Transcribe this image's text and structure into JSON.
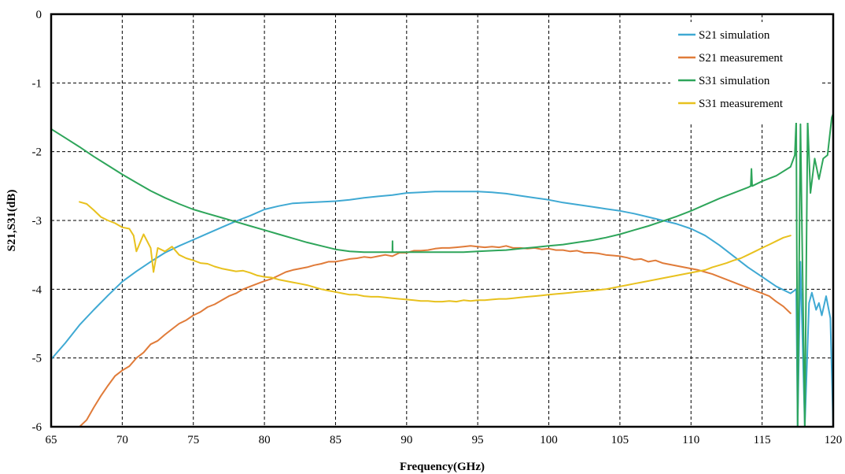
{
  "chart_data": {
    "type": "line",
    "title": "",
    "xlabel": "Frequency(GHz)",
    "ylabel": "S21,S31(dB)",
    "xlim": [
      65,
      120
    ],
    "ylim": [
      -6,
      0
    ],
    "xticks": [
      65,
      70,
      75,
      80,
      85,
      90,
      95,
      100,
      105,
      110,
      115,
      120
    ],
    "yticks": [
      0,
      -1,
      -2,
      -3,
      -4,
      -5,
      -6
    ],
    "grid": true,
    "legend_position": "top-right",
    "series": [
      {
        "name": "S21 simulation",
        "color": "#3fa9d3",
        "x": [
          65,
          66,
          67,
          68,
          69,
          70,
          71,
          72,
          73,
          74,
          75,
          76,
          77,
          78,
          79,
          80,
          81,
          82,
          83,
          84,
          85,
          86,
          87,
          88,
          89,
          90,
          91,
          92,
          93,
          94,
          95,
          96,
          97,
          98,
          99,
          100,
          101,
          102,
          103,
          104,
          105,
          106,
          107,
          108,
          109,
          110,
          111,
          112,
          113,
          114,
          115,
          116,
          117,
          117.4,
          117.5,
          117.7,
          118,
          118.3,
          118.5,
          118.8,
          119,
          119.2,
          119.5,
          119.8,
          120
        ],
        "values": [
          -5.02,
          -4.78,
          -4.52,
          -4.3,
          -4.09,
          -3.89,
          -3.74,
          -3.6,
          -3.47,
          -3.37,
          -3.28,
          -3.19,
          -3.1,
          -3.01,
          -2.93,
          -2.84,
          -2.79,
          -2.75,
          -2.74,
          -2.73,
          -2.72,
          -2.7,
          -2.67,
          -2.65,
          -2.63,
          -2.6,
          -2.59,
          -2.58,
          -2.58,
          -2.58,
          -2.58,
          -2.59,
          -2.61,
          -2.64,
          -2.67,
          -2.7,
          -2.74,
          -2.77,
          -2.8,
          -2.83,
          -2.86,
          -2.9,
          -2.95,
          -3.0,
          -3.05,
          -3.12,
          -3.22,
          -3.36,
          -3.52,
          -3.68,
          -3.82,
          -3.96,
          -4.06,
          -4.0,
          -6.0,
          -3.6,
          -6.0,
          -4.2,
          -4.05,
          -4.3,
          -4.2,
          -4.38,
          -4.1,
          -4.42,
          -6.0
        ]
      },
      {
        "name": "S21 measurement",
        "color": "#e07b39",
        "x": [
          67,
          67.5,
          68,
          68.5,
          69,
          69.5,
          70,
          70.5,
          71,
          71.5,
          72,
          72.5,
          73,
          73.5,
          74,
          74.5,
          75,
          75.5,
          76,
          76.5,
          77,
          77.5,
          78,
          78.5,
          79,
          79.5,
          80,
          80.5,
          81,
          81.5,
          82,
          82.5,
          83,
          83.5,
          84,
          84.5,
          85,
          85.5,
          86,
          86.5,
          87,
          87.5,
          88,
          88.5,
          89,
          89.5,
          90,
          90.5,
          91,
          91.5,
          92,
          92.5,
          93,
          93.5,
          94,
          94.5,
          95,
          95.5,
          96,
          96.5,
          97,
          97.5,
          98,
          98.5,
          99,
          99.5,
          100,
          100.5,
          101,
          101.5,
          102,
          102.5,
          103,
          103.5,
          104,
          104.5,
          105,
          105.5,
          106,
          106.5,
          107,
          107.5,
          108,
          108.5,
          109,
          109.5,
          110,
          110.5,
          111,
          111.5,
          112,
          112.5,
          113,
          113.5,
          114,
          114.5,
          115,
          115.5,
          116,
          116.5,
          117
        ],
        "values": [
          -6.0,
          -5.9,
          -5.72,
          -5.55,
          -5.4,
          -5.26,
          -5.18,
          -5.12,
          -5.0,
          -4.92,
          -4.8,
          -4.75,
          -4.66,
          -4.58,
          -4.5,
          -4.45,
          -4.38,
          -4.33,
          -4.26,
          -4.22,
          -4.16,
          -4.1,
          -4.06,
          -4.0,
          -3.96,
          -3.92,
          -3.88,
          -3.85,
          -3.8,
          -3.75,
          -3.72,
          -3.7,
          -3.68,
          -3.65,
          -3.63,
          -3.6,
          -3.6,
          -3.58,
          -3.56,
          -3.55,
          -3.53,
          -3.54,
          -3.52,
          -3.5,
          -3.52,
          -3.47,
          -3.47,
          -3.44,
          -3.44,
          -3.43,
          -3.41,
          -3.4,
          -3.4,
          -3.39,
          -3.38,
          -3.37,
          -3.38,
          -3.39,
          -3.38,
          -3.39,
          -3.37,
          -3.4,
          -3.4,
          -3.41,
          -3.4,
          -3.42,
          -3.41,
          -3.43,
          -3.43,
          -3.45,
          -3.44,
          -3.47,
          -3.47,
          -3.48,
          -3.5,
          -3.51,
          -3.52,
          -3.54,
          -3.57,
          -3.56,
          -3.6,
          -3.58,
          -3.62,
          -3.64,
          -3.66,
          -3.68,
          -3.7,
          -3.72,
          -3.75,
          -3.78,
          -3.82,
          -3.86,
          -3.9,
          -3.94,
          -3.98,
          -4.02,
          -4.06,
          -4.1,
          -4.18,
          -4.25,
          -4.35
        ]
      },
      {
        "name": "S31 simulation",
        "color": "#2ea55a",
        "x": [
          65,
          66,
          67,
          68,
          69,
          70,
          71,
          72,
          73,
          74,
          75,
          76,
          77,
          78,
          79,
          80,
          81,
          82,
          83,
          84,
          85,
          86,
          87,
          88,
          89,
          89.01,
          89.02,
          90,
          91,
          92,
          93,
          94,
          95,
          96,
          97,
          98,
          99,
          100,
          101,
          102,
          103,
          104,
          105,
          106,
          107,
          108,
          109,
          110,
          111,
          112,
          113,
          114,
          114.2,
          114.25,
          114.3,
          115,
          116,
          117,
          117.3,
          117.4,
          117.5,
          117.7,
          118,
          118.2,
          118.4,
          118.7,
          119,
          119.3,
          119.6,
          119.9,
          120
        ],
        "values": [
          -1.67,
          -1.8,
          -1.93,
          -2.07,
          -2.2,
          -2.33,
          -2.45,
          -2.57,
          -2.67,
          -2.76,
          -2.84,
          -2.9,
          -2.96,
          -3.02,
          -3.08,
          -3.14,
          -3.2,
          -3.26,
          -3.32,
          -3.37,
          -3.42,
          -3.45,
          -3.46,
          -3.46,
          -3.46,
          -3.3,
          -3.46,
          -3.46,
          -3.46,
          -3.46,
          -3.46,
          -3.46,
          -3.45,
          -3.44,
          -3.43,
          -3.41,
          -3.39,
          -3.37,
          -3.35,
          -3.32,
          -3.29,
          -3.25,
          -3.2,
          -3.14,
          -3.08,
          -3.01,
          -2.94,
          -2.86,
          -2.77,
          -2.68,
          -2.6,
          -2.52,
          -2.5,
          -2.25,
          -2.5,
          -2.43,
          -2.35,
          -2.22,
          -2.05,
          -1.55,
          -6.0,
          -1.6,
          -6.0,
          -1.55,
          -2.6,
          -2.1,
          -2.4,
          -2.1,
          -2.05,
          -1.5,
          -1.45
        ]
      },
      {
        "name": "S31 measurement",
        "color": "#e8c11e",
        "x": [
          67,
          67.5,
          68,
          68.5,
          69,
          69.5,
          70,
          70.5,
          70.8,
          71,
          71.5,
          72,
          72.2,
          72.5,
          73,
          73.5,
          74,
          74.5,
          75,
          75.5,
          76,
          76.5,
          77,
          77.5,
          78,
          78.5,
          79,
          79.5,
          80,
          80.5,
          81,
          81.5,
          82,
          82.5,
          83,
          83.5,
          84,
          84.5,
          85,
          85.5,
          86,
          86.5,
          87,
          87.5,
          88,
          88.5,
          89,
          89.5,
          90,
          90.5,
          91,
          91.5,
          92,
          92.5,
          93,
          93.5,
          94,
          94.5,
          95,
          95.5,
          96,
          96.5,
          97,
          97.5,
          98,
          98.5,
          99,
          99.5,
          100,
          100.5,
          101,
          101.5,
          102,
          102.5,
          103,
          103.5,
          104,
          104.5,
          105,
          105.5,
          106,
          106.5,
          107,
          107.5,
          108,
          108.5,
          109,
          109.5,
          110,
          110.5,
          111,
          111.5,
          112,
          112.5,
          113,
          113.5,
          114,
          114.5,
          115,
          115.5,
          116,
          116.5,
          117
        ],
        "values": [
          -2.73,
          -2.76,
          -2.85,
          -2.95,
          -3.0,
          -3.04,
          -3.1,
          -3.12,
          -3.22,
          -3.45,
          -3.2,
          -3.4,
          -3.75,
          -3.4,
          -3.45,
          -3.38,
          -3.5,
          -3.55,
          -3.58,
          -3.62,
          -3.63,
          -3.67,
          -3.7,
          -3.72,
          -3.74,
          -3.73,
          -3.76,
          -3.8,
          -3.82,
          -3.83,
          -3.86,
          -3.88,
          -3.9,
          -3.92,
          -3.94,
          -3.97,
          -4.0,
          -4.02,
          -4.04,
          -4.06,
          -4.08,
          -4.08,
          -4.1,
          -4.11,
          -4.11,
          -4.12,
          -4.13,
          -4.14,
          -4.15,
          -4.16,
          -4.17,
          -4.17,
          -4.18,
          -4.18,
          -4.17,
          -4.18,
          -4.16,
          -4.17,
          -4.16,
          -4.16,
          -4.15,
          -4.14,
          -4.14,
          -4.13,
          -4.12,
          -4.11,
          -4.1,
          -4.09,
          -4.08,
          -4.07,
          -4.06,
          -4.05,
          -4.04,
          -4.03,
          -4.02,
          -4.01,
          -4.0,
          -3.98,
          -3.96,
          -3.94,
          -3.92,
          -3.9,
          -3.88,
          -3.86,
          -3.84,
          -3.82,
          -3.8,
          -3.78,
          -3.76,
          -3.74,
          -3.72,
          -3.68,
          -3.65,
          -3.62,
          -3.58,
          -3.55,
          -3.5,
          -3.45,
          -3.4,
          -3.35,
          -3.3,
          -3.25,
          -3.22
        ]
      }
    ]
  }
}
